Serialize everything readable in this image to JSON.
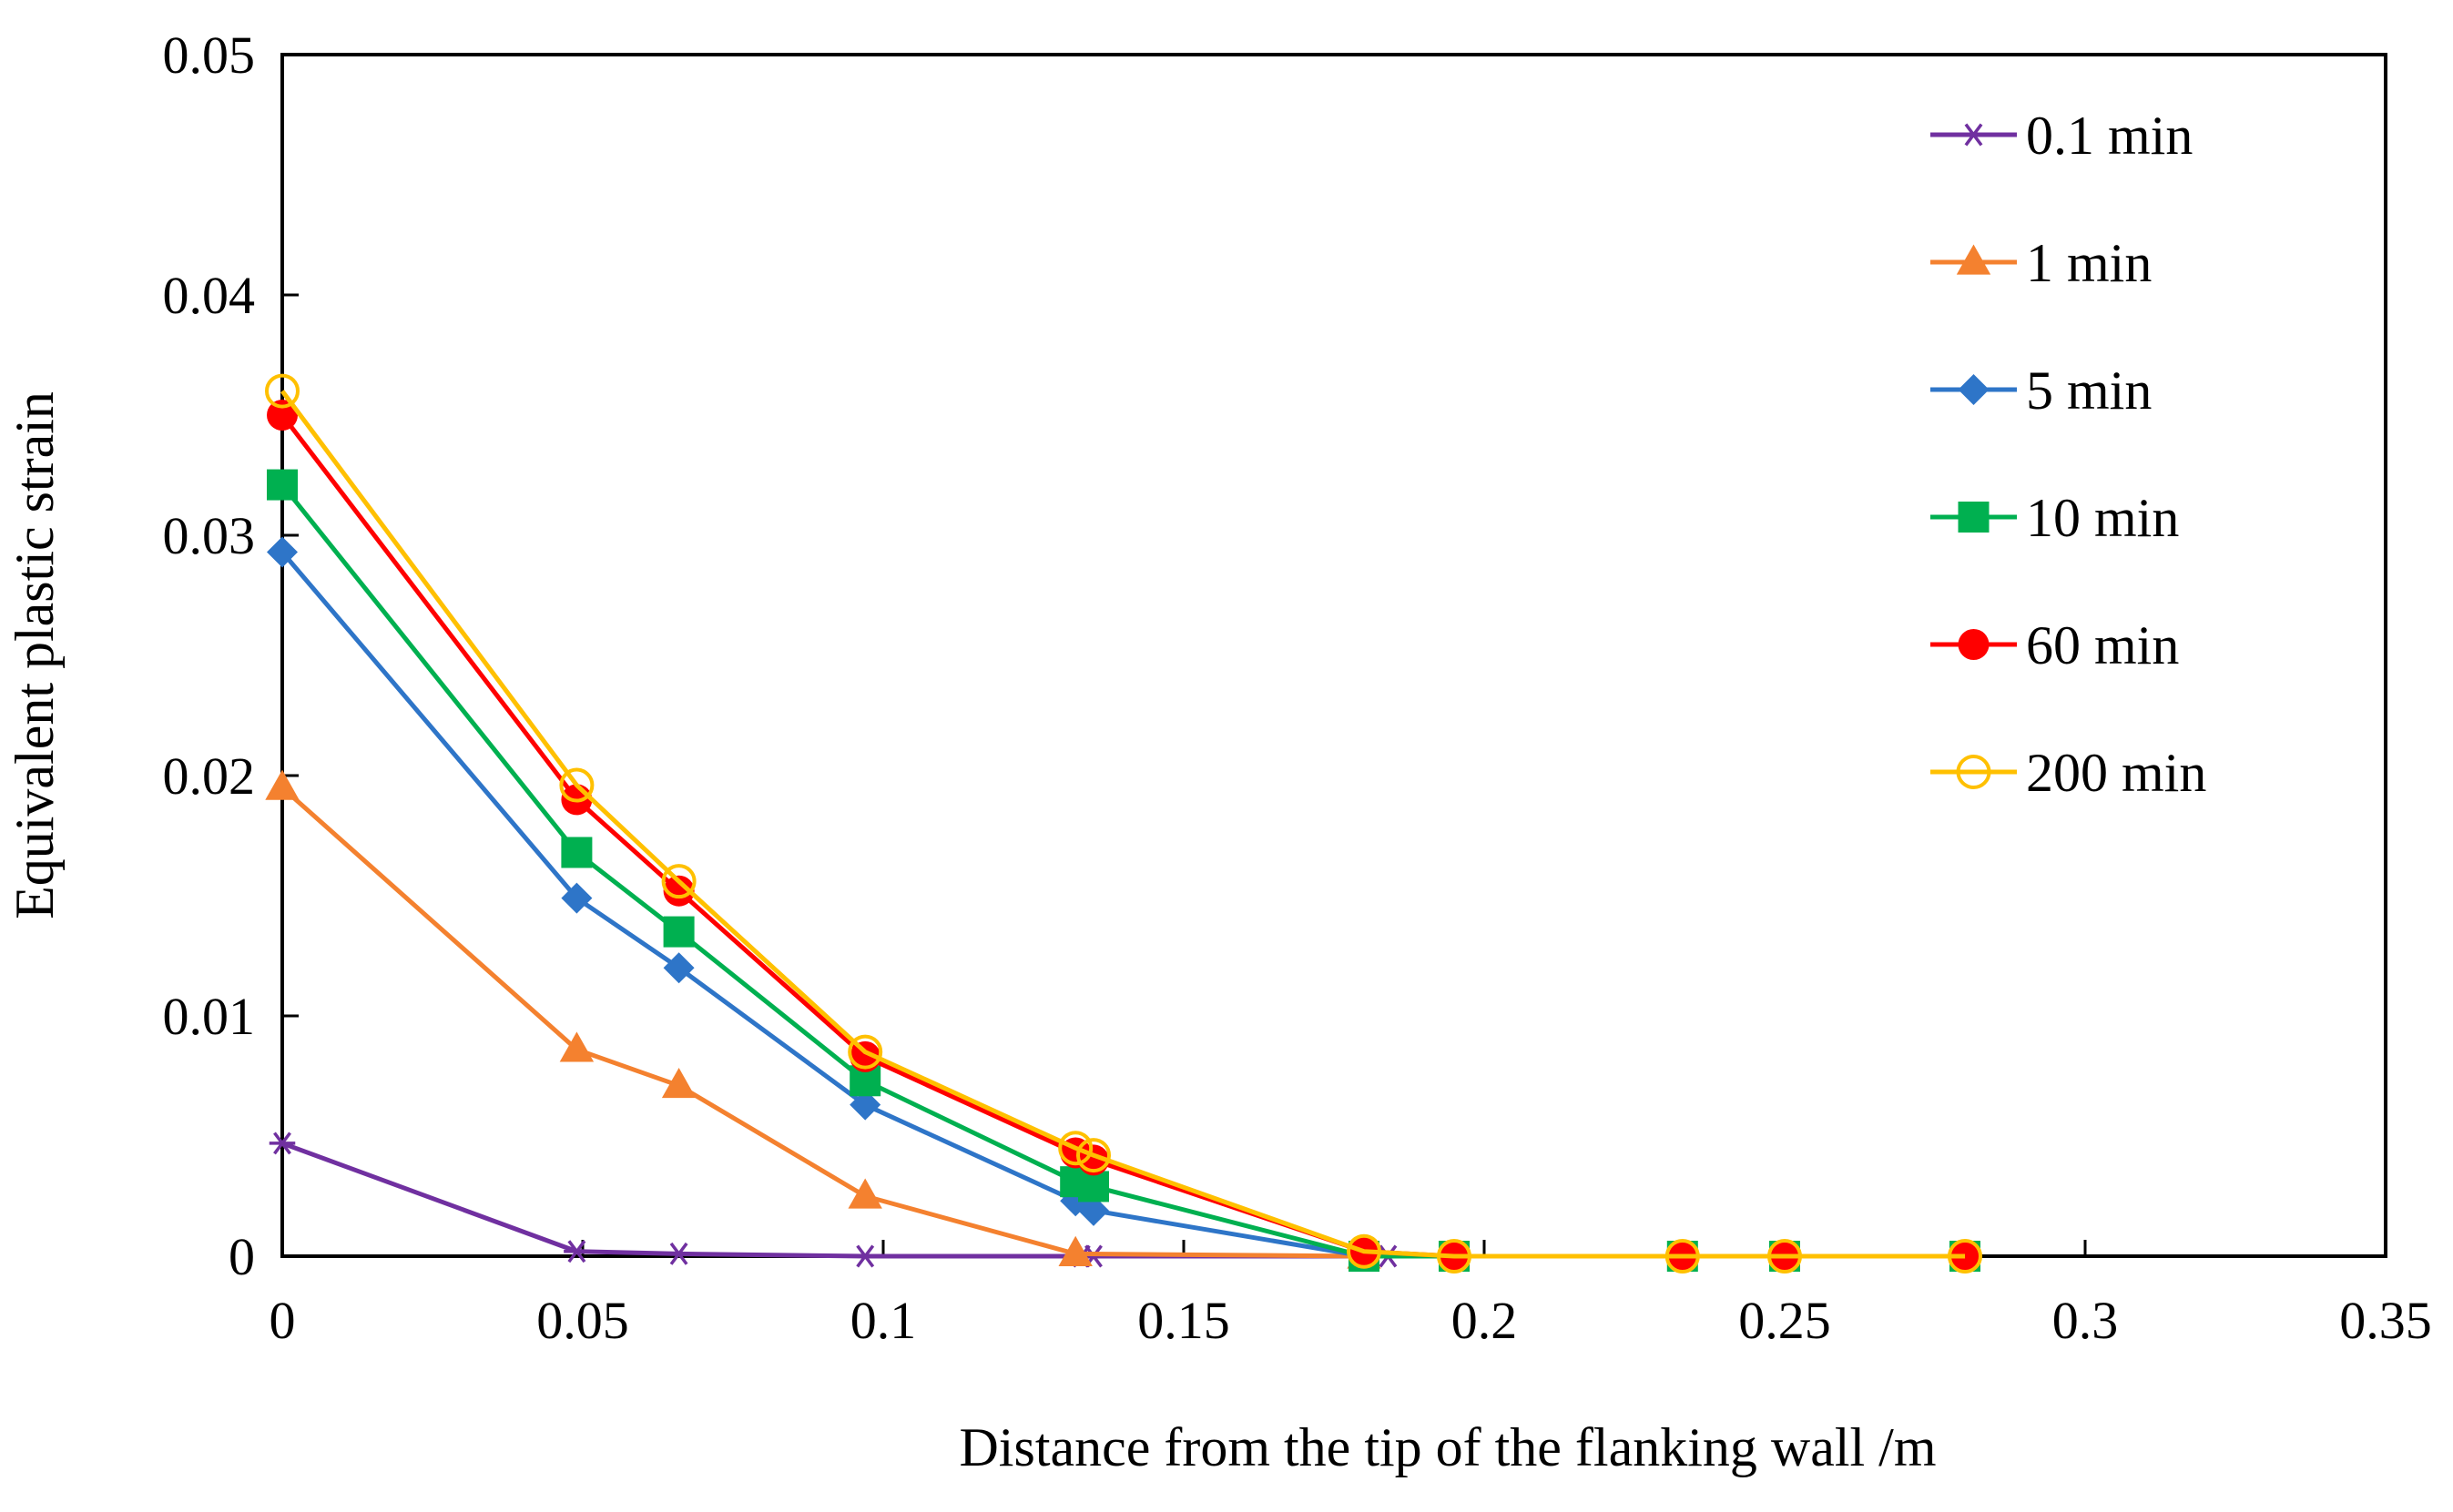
{
  "chart_data": {
    "type": "line",
    "title": "",
    "xlabel": "Distance from the tip of the flanking wall  /m",
    "ylabel": "Equivalent plastic strain",
    "xlim": [
      0,
      0.35
    ],
    "ylim": [
      0,
      0.05
    ],
    "xticks": [
      0,
      0.05,
      0.1,
      0.15,
      0.2,
      0.25,
      0.3,
      0.35
    ],
    "xtick_labels": [
      "0",
      "0.05",
      "0.1",
      "0.15",
      "0.2",
      "0.25",
      "0.3",
      "0.35"
    ],
    "yticks": [
      0,
      0.01,
      0.02,
      0.03,
      0.04,
      0.05
    ],
    "ytick_labels": [
      "0",
      "0.01",
      "0.02",
      "0.03",
      "0.04",
      "0.05"
    ],
    "grid": false,
    "legend_position": "top-right",
    "series": [
      {
        "name": "0.1 min",
        "color": "#7030A0",
        "marker": "star",
        "x": [
          0,
          0.049,
          0.066,
          0.097,
          0.133,
          0.135,
          0.18,
          0.184
        ],
        "y": [
          0.0047,
          0.0002,
          0.0001,
          0.0,
          0.0,
          0.0,
          0.0,
          0.0
        ]
      },
      {
        "name": "1 min",
        "color": "#F4812F",
        "marker": "triangle",
        "x": [
          0,
          0.049,
          0.066,
          0.097,
          0.132,
          0.18
        ],
        "y": [
          0.0195,
          0.0086,
          0.0071,
          0.0025,
          0.0001,
          0.0
        ]
      },
      {
        "name": "5 min",
        "color": "#2E75C8",
        "marker": "diamond",
        "x": [
          0,
          0.049,
          0.066,
          0.097,
          0.132,
          0.135,
          0.18,
          0.195,
          0.233,
          0.25,
          0.28
        ],
        "y": [
          0.0293,
          0.0149,
          0.012,
          0.0063,
          0.0023,
          0.0019,
          0.0,
          0.0,
          0.0,
          0.0,
          0.0
        ]
      },
      {
        "name": "10 min",
        "color": "#00B050",
        "marker": "square",
        "x": [
          0,
          0.049,
          0.066,
          0.097,
          0.132,
          0.135,
          0.18,
          0.195,
          0.233,
          0.25,
          0.28
        ],
        "y": [
          0.0321,
          0.0168,
          0.0135,
          0.0073,
          0.0031,
          0.0029,
          0.0,
          0.0,
          0.0,
          0.0,
          0.0
        ]
      },
      {
        "name": "60 min",
        "color": "#FF0000",
        "marker": "circle",
        "x": [
          0,
          0.049,
          0.066,
          0.097,
          0.132,
          0.135,
          0.18,
          0.195,
          0.233,
          0.25,
          0.28
        ],
        "y": [
          0.035,
          0.019,
          0.0152,
          0.0083,
          0.0043,
          0.004,
          0.0002,
          0.0,
          0.0,
          0.0,
          0.0
        ]
      },
      {
        "name": "200 min",
        "color": "#FFC000",
        "marker": "open-circle",
        "x": [
          0,
          0.049,
          0.066,
          0.097,
          0.132,
          0.135,
          0.18,
          0.195,
          0.233,
          0.25,
          0.28
        ],
        "y": [
          0.036,
          0.0196,
          0.0156,
          0.0085,
          0.0045,
          0.0042,
          0.0002,
          0.0,
          0.0,
          0.0,
          0.0
        ]
      }
    ]
  }
}
